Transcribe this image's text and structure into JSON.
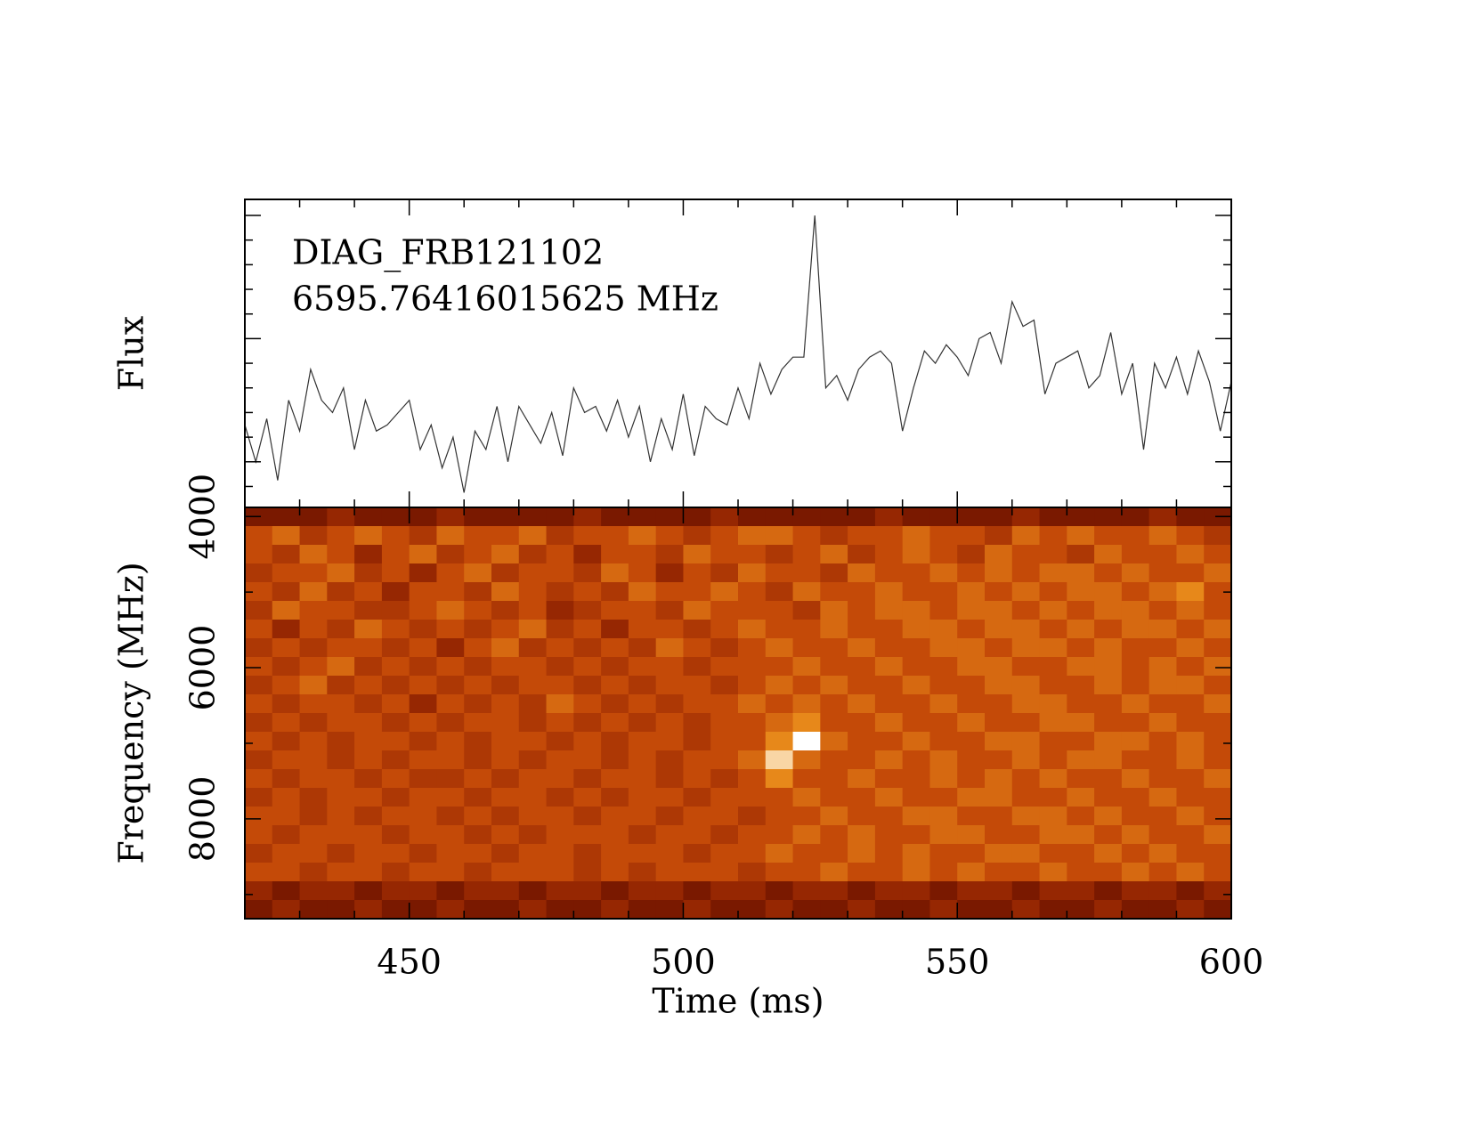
{
  "chart_data": [
    {
      "type": "line",
      "ylabel": "Flux",
      "annotations": [
        "DIAG_FRB121102",
        "6595.76416015625 MHz"
      ],
      "color": "#333333",
      "xlim": [
        420,
        600
      ],
      "ylim": [
        -0.37,
        2.13
      ],
      "yticks": [
        0,
        1,
        2
      ],
      "yminorticks": [
        0.2,
        0.4,
        0.6,
        0.8,
        1.2,
        1.4,
        1.6,
        1.8,
        -0.2
      ],
      "x": [
        420,
        422,
        424,
        426,
        428,
        430,
        432,
        434,
        436,
        438,
        440,
        442,
        444,
        446,
        448,
        450,
        452,
        454,
        456,
        458,
        460,
        462,
        464,
        466,
        468,
        470,
        472,
        474,
        476,
        478,
        480,
        482,
        484,
        486,
        488,
        490,
        492,
        494,
        496,
        498,
        500,
        502,
        504,
        506,
        508,
        510,
        512,
        514,
        516,
        518,
        520,
        522,
        524,
        526,
        528,
        530,
        532,
        534,
        536,
        538,
        540,
        542,
        544,
        546,
        548,
        550,
        552,
        554,
        556,
        558,
        560,
        562,
        564,
        566,
        568,
        570,
        572,
        574,
        576,
        578,
        580,
        582,
        584,
        586,
        588,
        590,
        592,
        594,
        596,
        598,
        600
      ],
      "values": [
        0.3,
        0.0,
        0.35,
        -0.15,
        0.5,
        0.25,
        0.75,
        0.5,
        0.4,
        0.6,
        0.1,
        0.5,
        0.25,
        0.3,
        0.4,
        0.5,
        0.1,
        0.3,
        -0.05,
        0.2,
        -0.25,
        0.25,
        0.1,
        0.45,
        0.0,
        0.45,
        0.3,
        0.15,
        0.4,
        0.05,
        0.6,
        0.4,
        0.45,
        0.25,
        0.5,
        0.2,
        0.45,
        0.0,
        0.35,
        0.1,
        0.55,
        0.05,
        0.45,
        0.35,
        0.3,
        0.6,
        0.35,
        0.8,
        0.55,
        0.75,
        0.85,
        0.85,
        2.0,
        0.6,
        0.7,
        0.5,
        0.75,
        0.85,
        0.9,
        0.8,
        0.25,
        0.6,
        0.9,
        0.8,
        0.95,
        0.85,
        0.7,
        1.0,
        1.05,
        0.8,
        1.3,
        1.1,
        1.15,
        0.55,
        0.8,
        0.85,
        0.9,
        0.6,
        0.7,
        1.05,
        0.55,
        0.8,
        0.1,
        0.8,
        0.6,
        0.85,
        0.55,
        0.9,
        0.65,
        0.25,
        0.65
      ]
    },
    {
      "type": "heatmap",
      "xlabel": "Time (ms)",
      "ylabel": "Frequency (MHz)",
      "xlim": [
        420,
        600
      ],
      "xticks": [
        450,
        500,
        550,
        600
      ],
      "xminorticks": [
        430,
        440,
        460,
        470,
        480,
        490,
        510,
        520,
        530,
        540,
        560,
        570,
        580,
        590
      ],
      "ylim": [
        9320,
        3880
      ],
      "yticks": [
        4000,
        6000,
        8000
      ],
      "yminorticks": [
        5000,
        7000,
        9000
      ],
      "zlim": [
        0,
        10
      ],
      "colormap": [
        "#3c0600",
        "#8a1e00",
        "#c44a08",
        "#f0981e",
        "#ffffff"
      ],
      "z": [
        [
          2,
          2,
          2,
          3,
          2,
          2,
          2,
          3,
          2,
          2,
          2,
          2,
          3,
          2,
          2,
          2,
          2,
          3,
          2,
          2,
          2,
          2,
          2,
          3,
          2,
          2,
          2,
          2,
          3,
          2,
          2,
          2,
          2,
          3,
          2,
          2
        ],
        [
          5,
          6,
          4,
          5,
          6,
          5,
          4,
          6,
          5,
          5,
          6,
          4,
          5,
          5,
          6,
          5,
          4,
          5,
          6,
          6,
          5,
          4,
          5,
          5,
          6,
          5,
          5,
          4,
          6,
          5,
          6,
          5,
          5,
          6,
          5,
          4
        ],
        [
          5,
          4,
          6,
          5,
          3,
          5,
          6,
          4,
          5,
          6,
          4,
          5,
          3,
          5,
          5,
          4,
          6,
          5,
          5,
          4,
          5,
          6,
          4,
          5,
          6,
          5,
          4,
          6,
          5,
          5,
          4,
          6,
          5,
          5,
          6,
          5
        ],
        [
          4,
          5,
          5,
          6,
          4,
          5,
          3,
          5,
          6,
          4,
          5,
          5,
          4,
          6,
          5,
          3,
          5,
          4,
          6,
          5,
          5,
          4,
          6,
          5,
          5,
          6,
          5,
          6,
          5,
          6,
          6,
          5,
          6,
          5,
          5,
          6
        ],
        [
          5,
          4,
          6,
          4,
          5,
          3,
          5,
          5,
          4,
          6,
          5,
          4,
          5,
          4,
          6,
          5,
          5,
          6,
          5,
          4,
          6,
          5,
          5,
          6,
          5,
          5,
          6,
          5,
          6,
          5,
          6,
          6,
          5,
          6,
          7,
          5
        ],
        [
          4,
          6,
          5,
          5,
          4,
          4,
          5,
          6,
          5,
          4,
          5,
          3,
          4,
          5,
          5,
          4,
          6,
          5,
          5,
          5,
          4,
          6,
          5,
          6,
          6,
          5,
          6,
          6,
          5,
          6,
          5,
          6,
          6,
          5,
          6,
          5
        ],
        [
          5,
          3,
          5,
          4,
          6,
          5,
          4,
          5,
          4,
          5,
          6,
          4,
          5,
          3,
          5,
          5,
          4,
          5,
          6,
          5,
          5,
          6,
          5,
          5,
          6,
          6,
          5,
          6,
          6,
          5,
          6,
          5,
          6,
          6,
          5,
          6
        ],
        [
          4,
          5,
          4,
          5,
          5,
          4,
          5,
          3,
          5,
          6,
          4,
          5,
          4,
          5,
          4,
          6,
          5,
          4,
          5,
          6,
          5,
          5,
          6,
          5,
          5,
          6,
          6,
          5,
          6,
          6,
          5,
          6,
          5,
          5,
          6,
          5
        ],
        [
          5,
          4,
          5,
          6,
          4,
          5,
          4,
          5,
          4,
          5,
          5,
          4,
          5,
          4,
          5,
          5,
          4,
          5,
          5,
          5,
          6,
          5,
          5,
          6,
          5,
          5,
          6,
          6,
          5,
          5,
          6,
          6,
          5,
          6,
          5,
          6
        ],
        [
          4,
          5,
          6,
          4,
          5,
          4,
          5,
          4,
          5,
          4,
          5,
          5,
          4,
          5,
          4,
          5,
          5,
          4,
          5,
          6,
          5,
          6,
          5,
          5,
          6,
          5,
          5,
          6,
          6,
          5,
          5,
          6,
          5,
          6,
          6,
          5
        ],
        [
          5,
          4,
          5,
          5,
          4,
          5,
          3,
          5,
          4,
          5,
          4,
          6,
          5,
          4,
          5,
          4,
          5,
          5,
          6,
          5,
          6,
          5,
          6,
          5,
          5,
          6,
          5,
          5,
          6,
          6,
          5,
          5,
          6,
          5,
          5,
          6
        ],
        [
          4,
          5,
          4,
          5,
          5,
          4,
          5,
          4,
          5,
          5,
          4,
          5,
          4,
          5,
          4,
          5,
          4,
          5,
          5,
          6,
          7,
          5,
          5,
          6,
          5,
          5,
          6,
          5,
          5,
          6,
          6,
          5,
          5,
          6,
          5,
          5
        ],
        [
          5,
          4,
          5,
          4,
          5,
          5,
          4,
          5,
          4,
          5,
          5,
          4,
          5,
          4,
          5,
          5,
          4,
          5,
          5,
          7,
          10,
          6,
          5,
          5,
          6,
          5,
          5,
          6,
          6,
          5,
          5,
          6,
          6,
          5,
          6,
          5
        ],
        [
          4,
          5,
          5,
          4,
          5,
          4,
          5,
          5,
          4,
          5,
          4,
          5,
          5,
          4,
          5,
          4,
          5,
          5,
          6,
          9,
          6,
          5,
          5,
          6,
          5,
          6,
          5,
          5,
          6,
          5,
          6,
          6,
          5,
          5,
          6,
          5
        ],
        [
          5,
          4,
          5,
          5,
          4,
          5,
          4,
          4,
          5,
          4,
          5,
          5,
          4,
          5,
          5,
          4,
          5,
          4,
          5,
          7,
          5,
          5,
          6,
          5,
          5,
          6,
          5,
          6,
          5,
          6,
          5,
          5,
          6,
          5,
          5,
          6
        ],
        [
          4,
          5,
          4,
          5,
          5,
          4,
          5,
          5,
          4,
          5,
          5,
          4,
          5,
          4,
          5,
          5,
          4,
          5,
          5,
          5,
          6,
          5,
          5,
          6,
          5,
          5,
          6,
          6,
          5,
          5,
          6,
          5,
          5,
          6,
          5,
          5
        ],
        [
          5,
          5,
          4,
          5,
          4,
          5,
          5,
          4,
          5,
          4,
          5,
          5,
          4,
          5,
          5,
          4,
          5,
          5,
          4,
          5,
          5,
          6,
          5,
          5,
          6,
          6,
          5,
          5,
          6,
          6,
          5,
          6,
          5,
          5,
          6,
          5
        ],
        [
          5,
          4,
          5,
          5,
          5,
          4,
          5,
          5,
          4,
          5,
          4,
          5,
          5,
          5,
          4,
          5,
          5,
          4,
          5,
          5,
          6,
          5,
          6,
          5,
          5,
          6,
          6,
          5,
          5,
          6,
          6,
          5,
          6,
          5,
          5,
          6
        ],
        [
          4,
          5,
          5,
          4,
          5,
          5,
          4,
          5,
          5,
          4,
          5,
          5,
          4,
          5,
          5,
          5,
          4,
          5,
          5,
          6,
          5,
          5,
          6,
          5,
          6,
          5,
          5,
          6,
          6,
          5,
          5,
          6,
          5,
          6,
          5,
          5
        ],
        [
          5,
          5,
          4,
          5,
          5,
          4,
          5,
          5,
          4,
          5,
          5,
          5,
          4,
          5,
          4,
          5,
          5,
          5,
          4,
          5,
          5,
          6,
          5,
          5,
          6,
          5,
          6,
          5,
          5,
          6,
          5,
          5,
          6,
          5,
          6,
          5
        ],
        [
          3,
          2,
          3,
          3,
          2,
          3,
          3,
          2,
          3,
          3,
          2,
          3,
          3,
          2,
          3,
          3,
          2,
          3,
          3,
          2,
          3,
          3,
          2,
          3,
          3,
          2,
          3,
          3,
          2,
          3,
          3,
          2,
          3,
          3,
          2,
          3
        ],
        [
          2,
          3,
          2,
          2,
          3,
          2,
          2,
          3,
          2,
          2,
          3,
          2,
          2,
          3,
          2,
          2,
          3,
          2,
          2,
          3,
          2,
          2,
          3,
          2,
          2,
          3,
          2,
          2,
          3,
          2,
          2,
          3,
          2,
          2,
          3,
          2
        ]
      ]
    }
  ]
}
